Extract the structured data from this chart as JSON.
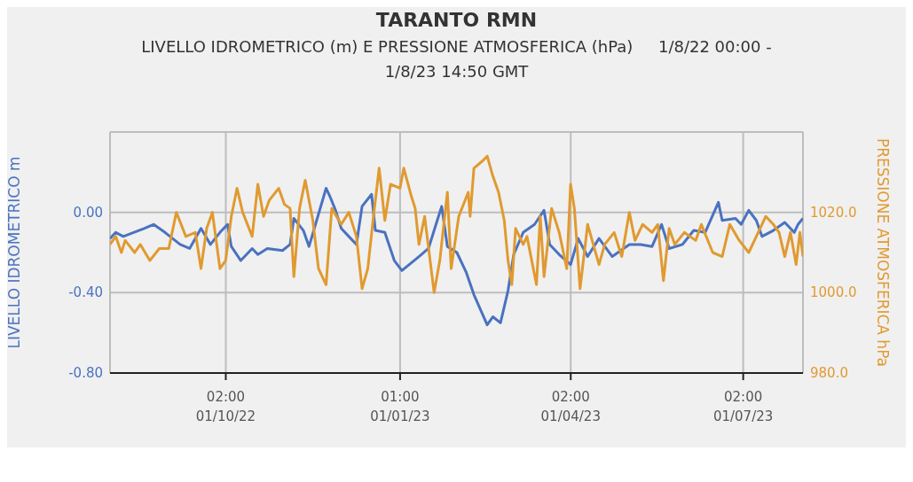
{
  "chart_data": {
    "type": "line",
    "title": "TARANTO RMN",
    "subtitle": "LIVELLO IDROMETRICO (m) E PRESSIONE ATMOSFERICA (hPa)     1/8/22 00:00 - 1/8/23 14:50 GMT",
    "ylabel": "LIVELLO IDROMETRICO m",
    "y2label": "PRESSIONE ATMOSFERICA hPa",
    "xlim": [
      "2022-08-01T00:00",
      "2023-08-01T14:50"
    ],
    "xticks": [
      {
        "value": "2022-10-01T02:00",
        "label": "02:00\n01/10/22"
      },
      {
        "value": "2023-01-01T01:00",
        "label": "01:00\n01/01/23"
      },
      {
        "value": "2023-04-01T02:00",
        "label": "02:00\n01/04/23"
      },
      {
        "value": "2023-07-01T02:00",
        "label": "02:00\n01/07/23"
      }
    ],
    "ylim": [
      -0.8,
      0.4
    ],
    "yticks": [
      {
        "value": -0.8,
        "label": "-0.80"
      },
      {
        "value": -0.4,
        "label": "-0.40"
      },
      {
        "value": 0,
        "label": "0.00"
      },
      {
        "value": 0.4,
        "label": null
      }
    ],
    "y2lim": [
      980,
      1040
    ],
    "y2ticks": [
      {
        "value": 980,
        "label": "980.0"
      },
      {
        "value": 1000,
        "label": "1000.0"
      },
      {
        "value": 1020,
        "label": "1020.0"
      },
      {
        "value": 1040,
        "label": null
      }
    ],
    "grid": true,
    "series": [
      {
        "color": "#4a72c0",
        "x": [
          "2022-08-01",
          "2022-08-04",
          "2022-08-08",
          "2022-08-19",
          "2022-08-24",
          "2022-08-30",
          "2022-09-07",
          "2022-09-12",
          "2022-09-18",
          "2022-09-23",
          "2022-09-28",
          "2022-10-02",
          "2022-10-04",
          "2022-10-09",
          "2022-10-15",
          "2022-10-18",
          "2022-10-23",
          "2022-10-31",
          "2022-11-04",
          "2022-11-06",
          "2022-11-11",
          "2022-11-14",
          "2022-11-23",
          "2022-11-25",
          "2022-11-28",
          "2022-12-01",
          "2022-12-05",
          "2022-12-09",
          "2022-12-12",
          "2022-12-17",
          "2022-12-19",
          "2022-12-24",
          "2022-12-29",
          "2023-01-02",
          "2023-01-11",
          "2023-01-16",
          "2023-01-20",
          "2023-01-23",
          "2023-01-26",
          "2023-01-31",
          "2023-02-05",
          "2023-02-09",
          "2023-02-16",
          "2023-02-19",
          "2023-02-23",
          "2023-02-27",
          "2023-03-02",
          "2023-03-07",
          "2023-03-13",
          "2023-03-18",
          "2023-03-21",
          "2023-03-26",
          "2023-04-01",
          "2023-04-05",
          "2023-04-10",
          "2023-04-16",
          "2023-04-23",
          "2023-05-02",
          "2023-05-08",
          "2023-05-14",
          "2023-05-19",
          "2023-05-23",
          "2023-05-30",
          "2023-06-05",
          "2023-06-11",
          "2023-06-18",
          "2023-06-20",
          "2023-06-27",
          "2023-06-30",
          "2023-07-04",
          "2023-07-08",
          "2023-07-11",
          "2023-07-17",
          "2023-07-23",
          "2023-07-28",
          "2023-07-30",
          "2023-08-01T14:50"
        ],
        "values": [
          -0.13,
          -0.1,
          -0.12,
          -0.08,
          -0.06,
          -0.1,
          -0.16,
          -0.18,
          -0.08,
          -0.16,
          -0.1,
          -0.06,
          -0.17,
          -0.24,
          -0.18,
          -0.21,
          -0.18,
          -0.19,
          -0.16,
          -0.03,
          -0.09,
          -0.17,
          0.12,
          0.08,
          0.01,
          -0.08,
          -0.12,
          -0.16,
          0.03,
          0.09,
          -0.09,
          -0.1,
          -0.24,
          -0.29,
          -0.22,
          -0.18,
          -0.06,
          0.03,
          -0.17,
          -0.2,
          -0.3,
          -0.41,
          -0.56,
          -0.52,
          -0.55,
          -0.39,
          -0.21,
          -0.1,
          -0.06,
          0.01,
          -0.16,
          -0.21,
          -0.26,
          -0.13,
          -0.22,
          -0.13,
          -0.22,
          -0.16,
          -0.16,
          -0.17,
          -0.06,
          -0.18,
          -0.16,
          -0.09,
          -0.1,
          0.05,
          -0.04,
          -0.03,
          -0.06,
          0.01,
          -0.04,
          -0.12,
          -0.09,
          -0.05,
          -0.1,
          -0.06,
          -0.03
        ]
      },
      {
        "color": "#e09a30",
        "axis": "y2",
        "x": [
          "2022-08-01",
          "2022-08-04",
          "2022-08-07",
          "2022-08-09",
          "2022-08-14",
          "2022-08-17",
          "2022-08-22",
          "2022-08-27",
          "2022-09-01",
          "2022-09-05",
          "2022-09-10",
          "2022-09-15",
          "2022-09-18",
          "2022-09-21",
          "2022-09-24",
          "2022-09-28",
          "2022-10-01",
          "2022-10-04",
          "2022-10-07",
          "2022-10-10",
          "2022-10-15",
          "2022-10-18",
          "2022-10-21",
          "2022-10-24",
          "2022-10-29",
          "2022-11-01",
          "2022-11-04",
          "2022-11-06",
          "2022-11-09",
          "2022-11-12",
          "2022-11-16",
          "2022-11-19",
          "2022-11-23",
          "2022-11-26",
          "2022-12-01",
          "2022-12-05",
          "2022-12-09",
          "2022-12-12",
          "2022-12-15",
          "2022-12-18",
          "2022-12-21",
          "2022-12-24",
          "2022-12-27",
          "2023-01-01",
          "2023-01-03",
          "2023-01-07",
          "2023-01-09",
          "2023-01-11",
          "2023-01-14",
          "2023-01-19",
          "2023-01-22",
          "2023-01-26",
          "2023-01-28",
          "2023-02-01",
          "2023-02-06",
          "2023-02-07",
          "2023-02-09",
          "2023-02-14",
          "2023-02-16",
          "2023-02-19",
          "2023-02-22",
          "2023-02-25",
          "2023-02-27",
          "2023-03-01",
          "2023-03-03",
          "2023-03-07",
          "2023-03-09",
          "2023-03-14",
          "2023-03-16",
          "2023-03-18",
          "2023-03-22",
          "2023-03-26",
          "2023-03-30",
          "2023-04-01",
          "2023-04-03",
          "2023-04-06",
          "2023-04-10",
          "2023-04-16",
          "2023-04-19",
          "2023-04-24",
          "2023-04-28",
          "2023-05-02",
          "2023-05-05",
          "2023-05-09",
          "2023-05-14",
          "2023-05-17",
          "2023-05-20",
          "2023-05-23",
          "2023-05-26",
          "2023-05-31",
          "2023-06-06",
          "2023-06-09",
          "2023-06-15",
          "2023-06-20",
          "2023-06-24",
          "2023-06-29",
          "2023-07-04",
          "2023-07-08",
          "2023-07-13",
          "2023-07-17",
          "2023-07-20",
          "2023-07-23",
          "2023-07-26",
          "2023-07-29",
          "2023-07-31",
          "2023-08-01T14:50"
        ],
        "values": [
          1012,
          1014,
          1010,
          1013,
          1010,
          1012,
          1008,
          1011,
          1011,
          1020,
          1014,
          1015,
          1006,
          1016,
          1020,
          1006,
          1008,
          1019,
          1026,
          1020,
          1014,
          1027,
          1019,
          1023,
          1026,
          1022,
          1021,
          1004,
          1021,
          1028,
          1018,
          1006,
          1002,
          1021,
          1017,
          1020,
          1014,
          1001,
          1006,
          1019,
          1031,
          1018,
          1027,
          1026,
          1031,
          1024,
          1021,
          1012,
          1019,
          1000,
          1008,
          1025,
          1006,
          1019,
          1025,
          1019,
          1031,
          1033,
          1034,
          1029,
          1025,
          1018,
          1008,
          1002,
          1016,
          1012,
          1014,
          1002,
          1019,
          1004,
          1021,
          1015,
          1006,
          1027,
          1021,
          1001,
          1017,
          1007,
          1012,
          1015,
          1009,
          1020,
          1013,
          1017,
          1015,
          1017,
          1003,
          1016,
          1012,
          1015,
          1013,
          1017,
          1010,
          1009,
          1017,
          1013,
          1010,
          1014,
          1019,
          1017,
          1015,
          1009,
          1015,
          1007,
          1015,
          1009
        ]
      }
    ]
  }
}
